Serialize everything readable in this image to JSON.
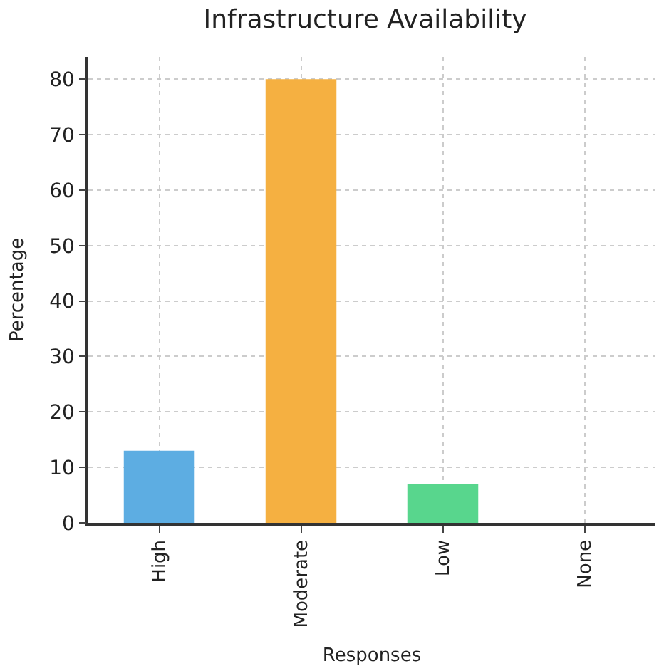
{
  "chart_data": {
    "type": "bar",
    "title": "Infrastructure Availability",
    "xlabel": "Responses",
    "ylabel": "Percentage",
    "categories": [
      "High",
      "Moderate",
      "Low",
      "None"
    ],
    "values": [
      13,
      80,
      7,
      0
    ],
    "colors": [
      "#5dade2",
      "#f5b041",
      "#58d68d",
      "#e74c3c"
    ],
    "ylim": [
      0,
      84
    ],
    "yticks": [
      0,
      10,
      20,
      30,
      40,
      50,
      60,
      70,
      80
    ],
    "grid": true
  }
}
